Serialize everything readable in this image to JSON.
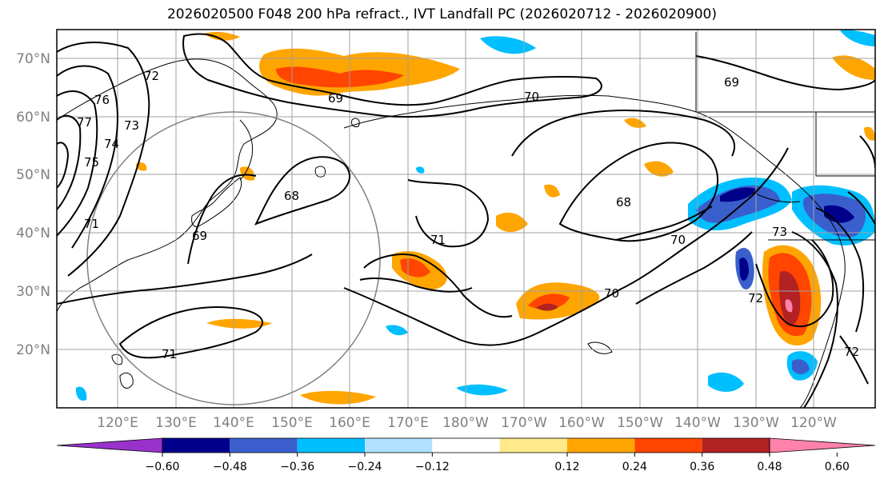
{
  "title": "2026020500 F048 200 hPa refract., IVT Landfall PC (2026020712 - 2026020900)",
  "lat_labels": [
    "70°N",
    "60°N",
    "50°N",
    "40°N",
    "30°N",
    "20°N"
  ],
  "lon_labels": [
    "120°E",
    "130°E",
    "140°E",
    "150°E",
    "160°E",
    "170°E",
    "180°W",
    "170°W",
    "160°W",
    "150°W",
    "140°W",
    "130°W",
    "120°W"
  ],
  "contour_labels": [
    "69",
    "70",
    "71",
    "72",
    "73",
    "74",
    "75",
    "76",
    "77",
    "68",
    "69",
    "70",
    "71",
    "72",
    "68",
    "69",
    "71",
    "70",
    "73",
    "72"
  ],
  "colorbar": {
    "ticks": [
      "−0.60",
      "−0.48",
      "−0.36",
      "−0.24",
      "−0.12",
      "0.12",
      "0.24",
      "0.36",
      "0.48",
      "0.60"
    ],
    "colors": [
      "#9932cc",
      "#00008b",
      "#3a5fcd",
      "#00bfff",
      "#b0e2ff",
      "#ffffff",
      "#ffe98a",
      "#ffa500",
      "#ff4500",
      "#b22222",
      "#ff82ab"
    ]
  },
  "colors": {
    "land_outline": "#000000",
    "grid": "#a0a0a0",
    "circle": "#808080",
    "label_gray": "#808080"
  }
}
